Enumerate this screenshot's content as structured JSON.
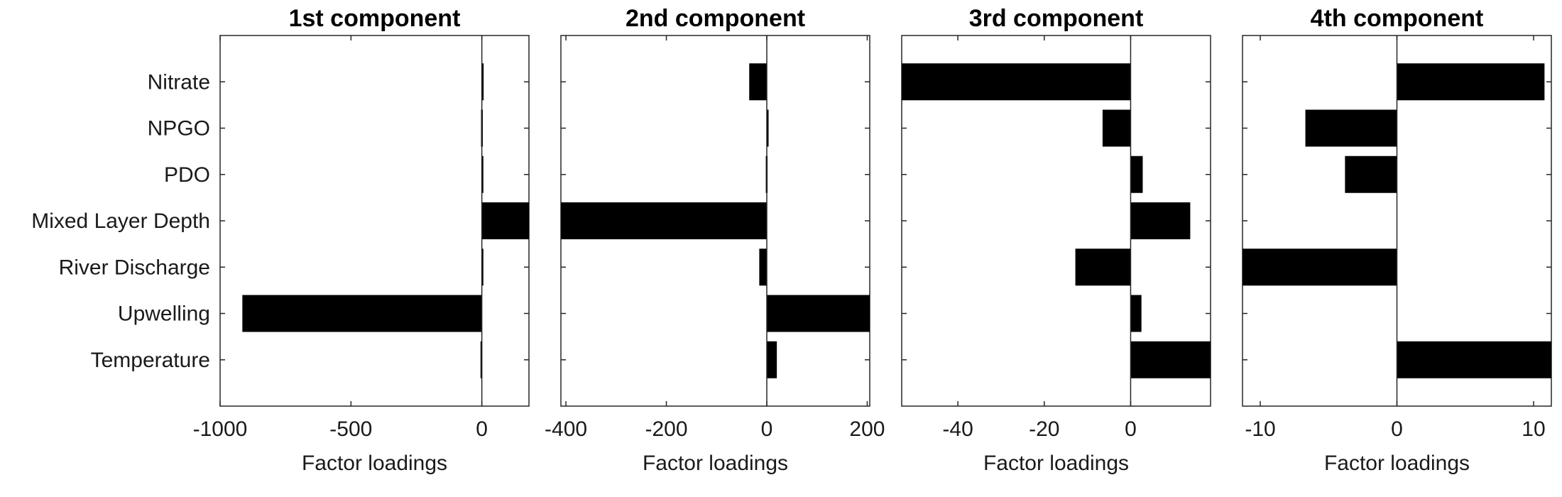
{
  "chart_data": [
    {
      "type": "bar",
      "orientation": "horizontal",
      "title": "1st component",
      "xlabel": "Factor loadings",
      "xlim": [
        -1000,
        180
      ],
      "xticks": [
        -1000,
        -500,
        0
      ],
      "tick_labels": [
        "-1000",
        "-500",
        "0"
      ],
      "categories": [
        "Nitrate",
        "NPGO",
        "PDO",
        "Mixed Layer Depth",
        "River Discharge",
        "Upwelling",
        "Temperature"
      ],
      "values": [
        5,
        -3,
        -1,
        190,
        -1,
        -915,
        -5
      ]
    },
    {
      "type": "bar",
      "orientation": "horizontal",
      "title": "2nd component",
      "xlabel": "Factor loadings",
      "xlim": [
        -410,
        205
      ],
      "xticks": [
        -400,
        -200,
        0,
        200
      ],
      "tick_labels": [
        "-400",
        "-200",
        "0",
        "200"
      ],
      "categories": [
        "Nitrate",
        "NPGO",
        "PDO",
        "Mixed Layer Depth",
        "River Discharge",
        "Upwelling",
        "Temperature"
      ],
      "values": [
        -35,
        2,
        -2,
        -420,
        -15,
        210,
        20
      ]
    },
    {
      "type": "bar",
      "orientation": "horizontal",
      "title": "3rd component",
      "xlabel": "Factor loadings",
      "xlim": [
        -53,
        18.5
      ],
      "xticks": [
        -40,
        -20,
        0
      ],
      "tick_labels": [
        "-40",
        "-20",
        "0"
      ],
      "categories": [
        "Nitrate",
        "NPGO",
        "PDO",
        "Mixed Layer Depth",
        "River Discharge",
        "Upwelling",
        "Temperature"
      ],
      "values": [
        -53,
        -6.5,
        2.8,
        13.8,
        -12.8,
        2.5,
        18.5
      ]
    },
    {
      "type": "bar",
      "orientation": "horizontal",
      "title": "4th component",
      "xlabel": "Factor loadings",
      "xlim": [
        -11.3,
        11.3
      ],
      "xticks": [
        -10,
        0,
        10
      ],
      "tick_labels": [
        "-10",
        "0",
        "10"
      ],
      "categories": [
        "Nitrate",
        "NPGO",
        "PDO",
        "Mixed Layer Depth",
        "River Discharge",
        "Upwelling",
        "Temperature"
      ],
      "values": [
        10.8,
        -6.7,
        -3.8,
        0,
        -11.3,
        0,
        11.3
      ]
    }
  ]
}
